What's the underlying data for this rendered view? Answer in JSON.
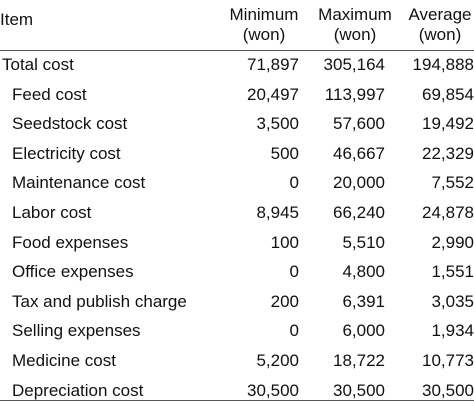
{
  "table": {
    "header": [
      {
        "label": "Item"
      },
      {
        "label": "Minimum",
        "unit": "(won)"
      },
      {
        "label": "Maximum",
        "unit": "(won)"
      },
      {
        "label": "Average",
        "unit": "(won)"
      }
    ],
    "rows": [
      [
        "Total cost",
        "71,897",
        "305,164",
        "194,888"
      ],
      [
        "Feed cost",
        "20,497",
        "113,997",
        "69,854"
      ],
      [
        "Seedstock cost",
        "3,500",
        "57,600",
        "19,492"
      ],
      [
        "Electricity cost",
        "500",
        "46,667",
        "22,329"
      ],
      [
        "Maintenance cost",
        "0",
        "20,000",
        "7,552"
      ],
      [
        "Labor cost",
        "8,945",
        "66,240",
        "24,878"
      ],
      [
        "Food expenses",
        "100",
        "5,510",
        "2,990"
      ],
      [
        "Office expenses",
        "0",
        "4,800",
        "1,551"
      ],
      [
        "Tax and publish charge",
        "200",
        "6,391",
        "3,035"
      ],
      [
        "Selling expenses",
        "0",
        "6,000",
        "1,934"
      ],
      [
        "Medicine cost",
        "5,200",
        "18,722",
        "10,773"
      ],
      [
        "Depreciation cost",
        "30,500",
        "30,500",
        "30,500"
      ]
    ]
  }
}
